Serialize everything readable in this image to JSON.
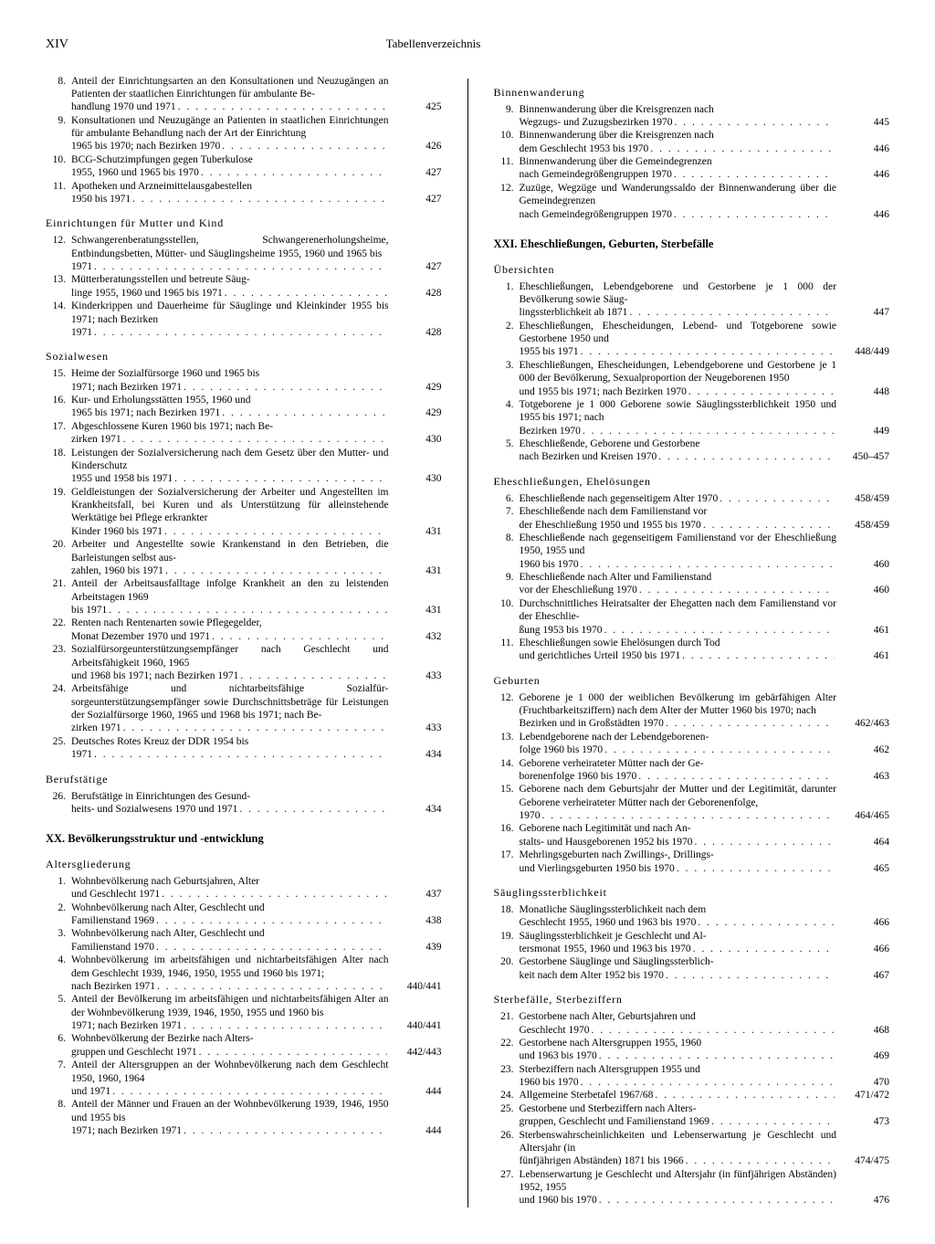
{
  "page_number": "XIV",
  "page_title": "Tabellenverzeichnis",
  "left": {
    "groups": [
      {
        "items": [
          {
            "n": "8.",
            "pre": "Anteil der Einrichtungsarten an den Konsul­tationen und Neuzugängen an Patienten der staatlichen Einrichtungen für ambulante Be-",
            "last": "handlung 1970 und 1971",
            "p": "425"
          },
          {
            "n": "9.",
            "pre": "Konsultationen und Neuzugänge an Patienten in staatlichen Einrichtungen für ambulante Behandlung nach der Art der Einrichtung",
            "last": "1965 bis 1970; nach Bezirken 1970",
            "p": "426"
          },
          {
            "n": "10.",
            "pre": "BCG-Schutzimpfungen gegen Tuberkulose",
            "last": "1955, 1960 und 1965 bis 1970",
            "p": "427"
          },
          {
            "n": "11.",
            "pre": "Apotheken und Arzneimittelausgabestellen",
            "last": "1950 bis 1971",
            "p": "427"
          }
        ]
      },
      {
        "sub": "Einrichtungen für Mutter und Kind",
        "items": [
          {
            "n": "12.",
            "pre": "Schwangerenberatungsstellen, Schwangeren­erholungsheime, Entbindungsbetten, Mütter- und Säuglingsheime 1955, 1960 und 1965 bis",
            "last": "1971",
            "p": "427"
          },
          {
            "n": "13.",
            "pre": "Mütterberatungsstellen und betreute Säug-",
            "last": "linge 1955, 1960 und 1965 bis 1971",
            "p": "428"
          },
          {
            "n": "14.",
            "pre": "Kinderkrippen und Dauerheime für Säuglinge und Kleinkinder 1955 bis 1971; nach Bezirken",
            "last": "1971",
            "p": "428"
          }
        ]
      },
      {
        "sub": "Sozialwesen",
        "items": [
          {
            "n": "15.",
            "pre": "Heime der Sozialfürsorge 1960 und 1965 bis",
            "last": "1971; nach Bezirken 1971",
            "p": "429"
          },
          {
            "n": "16.",
            "pre": "Kur- und Erholungsstätten 1955, 1960 und",
            "last": "1965 bis 1971; nach Bezirken 1971",
            "p": "429"
          },
          {
            "n": "17.",
            "pre": "Abgeschlossene Kuren 1960 bis 1971; nach Be-",
            "last": "zirken 1971",
            "p": "430"
          },
          {
            "n": "18.",
            "pre": "Leistungen der Sozialversicherung nach dem Gesetz über den Mutter- und Kinderschutz",
            "last": "1955 und 1958 bis 1971",
            "p": "430"
          },
          {
            "n": "19.",
            "pre": "Geldleistungen der Sozialversicherung der Ar­beiter und Angestellten im Krankheitsfall, bei Kuren und als Unterstützung für allein­stehende Werktätige bei Pflege erkrankter",
            "last": "Kinder 1960 bis 1971",
            "p": "431"
          },
          {
            "n": "20.",
            "pre": "Arbeiter und Angestellte sowie Krankenstand in den Betrieben, die Barleistungen selbst aus-",
            "last": "zahlen, 1960 bis 1971",
            "p": "431"
          },
          {
            "n": "21.",
            "pre": "Anteil der Arbeitsausfalltage infolge Krank­heit an den zu leistenden Arbeitstagen 1969",
            "last": "bis 1971",
            "p": "431"
          },
          {
            "n": "22.",
            "pre": "Renten nach Rentenarten sowie Pflegegelder,",
            "last": "Monat Dezember 1970 und 1971",
            "p": "432"
          },
          {
            "n": "23.",
            "pre": "Sozialfürsorgeunterstützungsempfänger nach Geschlecht und Arbeitsfähigkeit 1960, 1965",
            "last": "und 1968 bis 1971; nach Bezirken 1971",
            "p": "433"
          },
          {
            "n": "24.",
            "pre": "Arbeitsfähige und nichtarbeitsfähige Sozialfür­sorgeunterstützungsempfänger sowie Durch­schnittsbeträge für Leistungen der Sozialfür­sorge 1960, 1965 und 1968 bis 1971; nach Be-",
            "last": "zirken 1971",
            "p": "433"
          },
          {
            "n": "25.",
            "pre": "Deutsches Rotes Kreuz der DDR 1954 bis",
            "last": "1971",
            "p": "434"
          }
        ]
      },
      {
        "sub": "Berufstätige",
        "items": [
          {
            "n": "26.",
            "pre": "Berufstätige in Einrichtungen des Gesund-",
            "last": "heits- und Sozialwesens 1970 und 1971",
            "p": "434"
          }
        ]
      }
    ],
    "section": {
      "title": "XX. Bevölkerungsstruktur und -entwicklung",
      "groups": [
        {
          "sub": "Altersgliederung",
          "items": [
            {
              "n": "1.",
              "pre": "Wohnbevölkerung nach Geburtsjahren, Alter",
              "last": "und Geschlecht 1971",
              "p": "437"
            },
            {
              "n": "2.",
              "pre": "Wohnbevölkerung nach Alter, Geschlecht und",
              "last": "Familienstand 1969",
              "p": "438"
            },
            {
              "n": "3.",
              "pre": "Wohnbevölkerung nach Alter, Geschlecht und",
              "last": "Familienstand 1970",
              "p": "439"
            },
            {
              "n": "4.",
              "pre": "Wohnbevölkerung im arbeitsfähigen und nichtarbeitsfähigen Alter nach dem Geschlecht 1939, 1946, 1950, 1955 und 1960 bis 1971;",
              "last": "nach Bezirken 1971",
              "p": "440/441"
            },
            {
              "n": "5.",
              "pre": "Anteil der Bevölkerung im arbeitsfähigen und nichtarbeitsfähigen Alter an der Wohnbevöl­kerung 1939, 1946, 1950, 1955 und 1960 bis",
              "last": "1971; nach Bezirken 1971",
              "p": "440/441"
            },
            {
              "n": "6.",
              "pre": "Wohnbevölkerung der Bezirke nach Alters-",
              "last": "gruppen und Geschlecht 1971",
              "p": "442/443"
            },
            {
              "n": "7.",
              "pre": "Anteil der Altersgruppen an der Wohnbevölke­rung nach dem Geschlecht 1950, 1960, 1964",
              "last": "und 1971",
              "p": "444"
            },
            {
              "n": "8.",
              "pre": "Anteil der Männer und Frauen an der Wohn­bevölkerung 1939, 1946, 1950 und 1955 bis",
              "last": "1971; nach Bezirken 1971",
              "p": "444"
            }
          ]
        }
      ]
    }
  },
  "right": {
    "groups": [
      {
        "sub": "Binnenwanderung",
        "items": [
          {
            "n": "9.",
            "pre": "Binnenwanderung über die Kreisgrenzen nach",
            "last": "Wegzugs- und Zuzugsbezirken 1970",
            "p": "445"
          },
          {
            "n": "10.",
            "pre": "Binnenwanderung über die Kreisgrenzen nach",
            "last": "dem Geschlecht 1953 bis 1970",
            "p": "446"
          },
          {
            "n": "11.",
            "pre": "Binnenwanderung über die Gemeindegrenzen",
            "last": "nach Gemeindegrößengruppen 1970",
            "p": "446"
          },
          {
            "n": "12.",
            "pre": "Zuzüge, Wegzüge und Wanderungssaldo der Binnenwanderung über die Gemeindegrenzen",
            "last": "nach Gemeindegrößengruppen 1970",
            "p": "446"
          }
        ]
      }
    ],
    "section": {
      "title": "XXI. Eheschließungen, Geburten, Sterbefälle",
      "groups": [
        {
          "sub": "Übersichten",
          "items": [
            {
              "n": "1.",
              "pre": "Eheschließungen, Lebendgeborene und Ge­storbene je 1 000 der Bevölkerung sowie Säug-",
              "last": "lingssterblichkeit ab 1871",
              "p": "447"
            },
            {
              "n": "2.",
              "pre": "Eheschließungen, Ehescheidungen, Lebend- und Totgeborene sowie Gestorbene 1950 und",
              "last": "1955 bis 1971",
              "p": "448/449"
            },
            {
              "n": "3.",
              "pre": "Eheschließungen, Ehescheidungen, Lebendge­borene und Gestorbene je 1 000 der Bevölke­rung, Sexualproportion der Neugeborenen 1950",
              "last": "und 1955 bis 1971; nach Bezirken 1970",
              "p": "448"
            },
            {
              "n": "4.",
              "pre": "Totgeborene je 1 000 Geborene sowie Säug­lingssterblichkeit 1950 und 1955 bis 1971; nach",
              "last": "Bezirken 1970",
              "p": "449"
            },
            {
              "n": "5.",
              "pre": "Eheschließende, Geborene und Gestorbene",
              "last": "nach Bezirken und Kreisen 1970",
              "p": "450–457"
            }
          ]
        },
        {
          "sub": "Eheschließungen, Ehelösungen",
          "items": [
            {
              "n": "6.",
              "pre": "",
              "last": "Eheschließende nach gegenseitigem Alter 1970",
              "p": "458/459"
            },
            {
              "n": "7.",
              "pre": "Eheschließende nach dem Familienstand vor",
              "last": "der Eheschließung 1950 und 1955 bis 1970",
              "p": "458/459"
            },
            {
              "n": "8.",
              "pre": "Eheschließende nach gegenseitigem Familien­stand vor der Eheschließung 1950, 1955 und",
              "last": "1960 bis 1970",
              "p": "460"
            },
            {
              "n": "9.",
              "pre": "Eheschließende nach Alter und Familienstand",
              "last": "vor der Eheschließung 1970",
              "p": "460"
            },
            {
              "n": "10.",
              "pre": "Durchschnittliches Heiratsalter der Ehegatten nach dem Familienstand vor der Eheschlie-",
              "last": "ßung 1953 bis 1970",
              "p": "461"
            },
            {
              "n": "11.",
              "pre": "Eheschließungen sowie Ehelösungen durch Tod",
              "last": "und gerichtliches Urteil 1950 bis 1971",
              "p": "461"
            }
          ]
        },
        {
          "sub": "Geburten",
          "items": [
            {
              "n": "12.",
              "pre": "Geborene je 1 000 der weiblichen Bevölkerung im gebärfähigen Alter (Fruchtbarkeitsziffern) nach dem Alter der Mutter 1960 bis 1970; nach",
              "last": "Bezirken und in Großstädten 1970",
              "p": "462/463"
            },
            {
              "n": "13.",
              "pre": "Lebendgeborene nach der Lebendgeborenen-",
              "last": "folge 1960 bis 1970",
              "p": "462"
            },
            {
              "n": "14.",
              "pre": "Geborene verheirateter Mütter nach der Ge-",
              "last": "borenenfolge 1960 bis 1970",
              "p": "463"
            },
            {
              "n": "15.",
              "pre": "Geborene nach dem Geburtsjahr der Mutter und der Legitimität, darunter Geborene ver­heirateter Mütter nach der Geborenenfolge,",
              "last": "1970",
              "p": "464/465"
            },
            {
              "n": "16.",
              "pre": "Geborene nach Legitimität und nach An-",
              "last": "stalts- und Hausgeborenen 1952 bis 1970",
              "p": "464"
            },
            {
              "n": "17.",
              "pre": "Mehrlingsgeburten nach Zwillings-, Drillings-",
              "last": "und Vierlingsgeburten 1950 bis 1970",
              "p": "465"
            }
          ]
        },
        {
          "sub": "Säuglingssterblichkeit",
          "items": [
            {
              "n": "18.",
              "pre": "Monatliche Säuglingssterblichkeit nach dem",
              "last": "Geschlecht 1955, 1960 und 1963 bis 1970",
              "p": "466"
            },
            {
              "n": "19.",
              "pre": "Säuglingssterblichkeit je Geschlecht und Al-",
              "last": "tersmonat 1955, 1960 und 1963 bis 1970",
              "p": "466"
            },
            {
              "n": "20.",
              "pre": "Gestorbene Säuglinge und Säuglingssterblich-",
              "last": "keit nach dem Alter 1952 bis 1970",
              "p": "467"
            }
          ]
        },
        {
          "sub": "Sterbefälle, Sterbeziffern",
          "items": [
            {
              "n": "21.",
              "pre": "Gestorbene nach Alter, Geburtsjahren und",
              "last": "Geschlecht 1970",
              "p": "468"
            },
            {
              "n": "22.",
              "pre": "Gestorbene nach Altersgruppen 1955, 1960",
              "last": "und 1963 bis 1970",
              "p": "469"
            },
            {
              "n": "23.",
              "pre": "Sterbeziffern nach Altersgruppen 1955 und",
              "last": "1960 bis 1970",
              "p": "470"
            },
            {
              "n": "24.",
              "pre": "",
              "last": "Allgemeine Sterbetafel 1967/68",
              "p": "471/472"
            },
            {
              "n": "25.",
              "pre": "Gestorbene und Sterbeziffern nach Alters-",
              "last": "gruppen, Geschlecht und Familienstand 1969",
              "p": "473"
            },
            {
              "n": "26.",
              "pre": "Sterbenswahrscheinlichkeiten und Lebenser­wartung je Geschlecht und Altersjahr (in",
              "last": "fünfjährigen Abständen) 1871 bis 1966",
              "p": "474/475"
            },
            {
              "n": "27.",
              "pre": "Lebenserwartung je Geschlecht und Alters­jahr (in fünfjährigen Abständen) 1952, 1955",
              "last": "und 1960 bis 1970",
              "p": "476"
            }
          ]
        }
      ]
    }
  }
}
